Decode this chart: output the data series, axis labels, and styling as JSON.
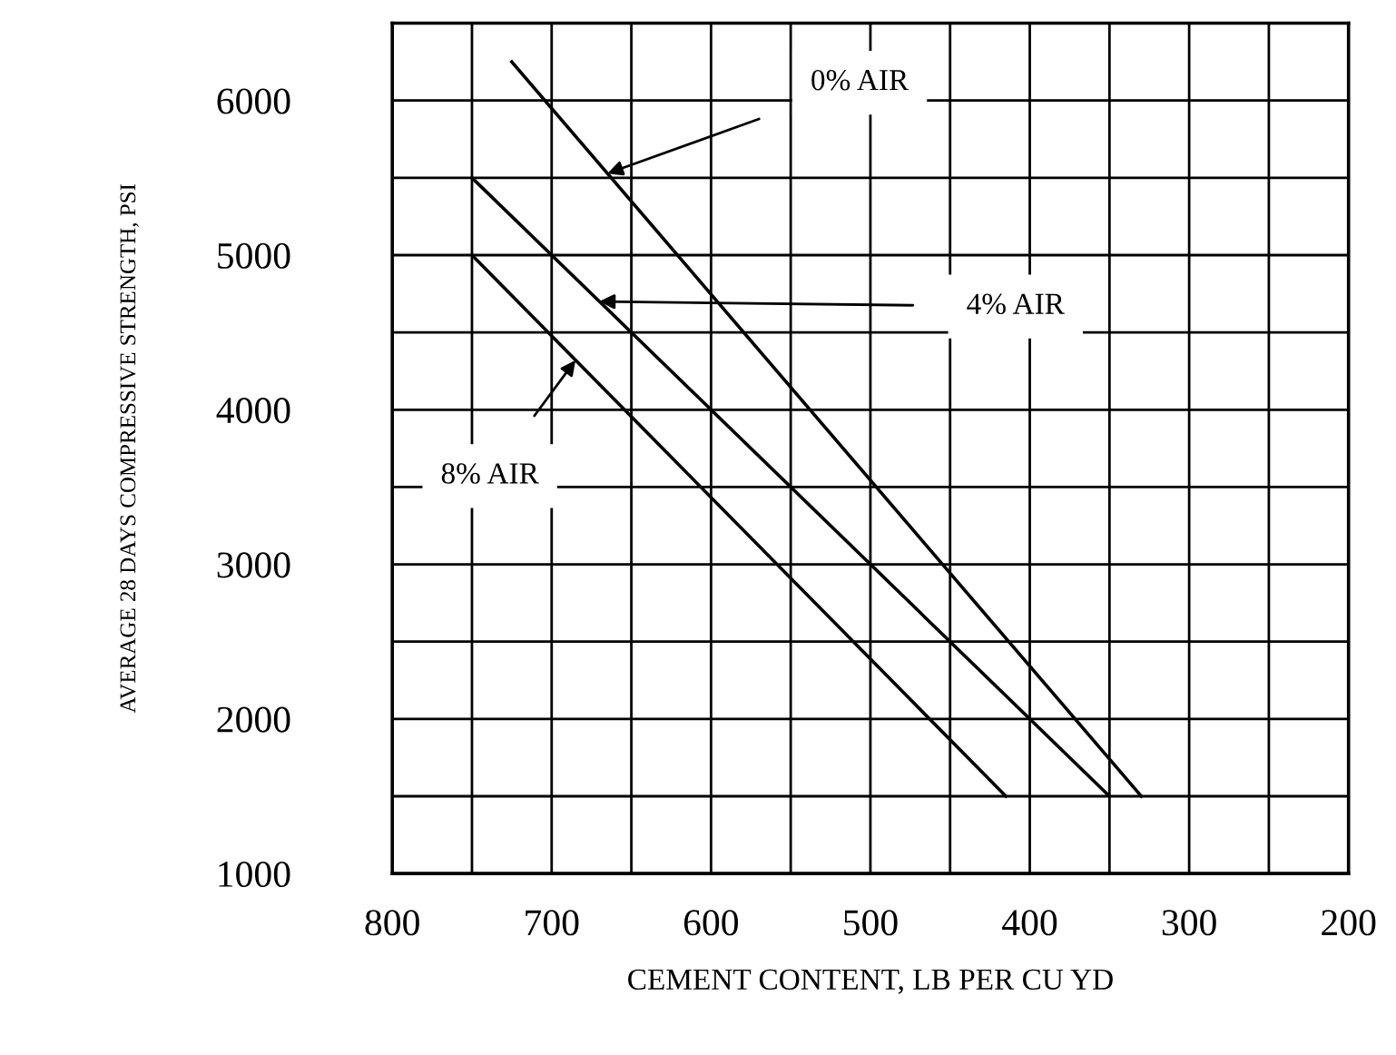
{
  "chart_data": {
    "type": "line",
    "xlabel": "CEMENT CONTENT, LB PER CU YD",
    "ylabel": "AVERAGE 28 DAYS COMPRESSIVE STRENGTH, PSI",
    "series": [
      {
        "color": "#000000",
        "x": [
          725,
          330
        ],
        "values": [
          6250,
          1500
        ]
      },
      {
        "color": "#000000",
        "x": [
          750,
          350
        ],
        "values": [
          5500,
          1500
        ]
      },
      {
        "color": "#000000",
        "x": [
          750,
          415
        ],
        "values": [
          5000,
          1500
        ]
      }
    ],
    "annotations": [
      "0% AIR",
      "4% AIR",
      "8% AIR"
    ],
    "xlim": [
      800,
      200
    ],
    "xticks": [
      800,
      700,
      600,
      500,
      400,
      300,
      200
    ],
    "ylim": [
      1000,
      6500
    ],
    "yticks": [
      1000,
      2000,
      3000,
      4000,
      5000,
      6000
    ],
    "grid": true,
    "marker": "none",
    "line_style": "solid"
  }
}
